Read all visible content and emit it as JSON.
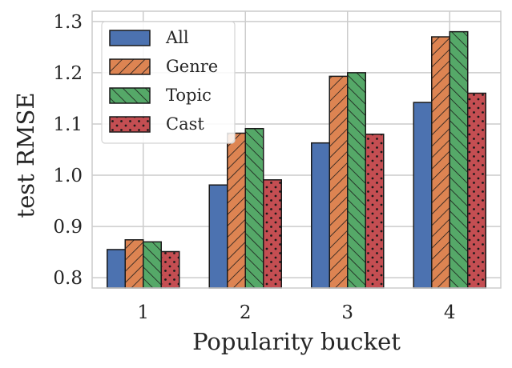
{
  "chart_data": {
    "type": "bar",
    "xlabel": "Popularity bucket",
    "ylabel": "test RMSE",
    "categories": [
      "1",
      "2",
      "3",
      "4"
    ],
    "ylim": [
      0.78,
      1.32
    ],
    "yticks": [
      0.8,
      0.9,
      1.0,
      1.1,
      1.2,
      1.3
    ],
    "ytick_labels": [
      "0.8",
      "0.9",
      "1.0",
      "1.1",
      "1.2",
      "1.3"
    ],
    "grid": true,
    "legend_position": "top-left",
    "series": [
      {
        "name": "All",
        "color": "#4c72b0",
        "pattern": "none",
        "values": [
          0.855,
          0.981,
          1.063,
          1.142
        ]
      },
      {
        "name": "Genre",
        "color": "#dd8452",
        "pattern": "forward-hatch",
        "values": [
          0.874,
          1.082,
          1.193,
          1.27
        ]
      },
      {
        "name": "Topic",
        "color": "#55a868",
        "pattern": "back-hatch",
        "values": [
          0.87,
          1.091,
          1.2,
          1.28
        ]
      },
      {
        "name": "Cast",
        "color": "#c44e52",
        "pattern": "dots",
        "values": [
          0.851,
          0.991,
          1.08,
          1.16
        ]
      }
    ]
  }
}
